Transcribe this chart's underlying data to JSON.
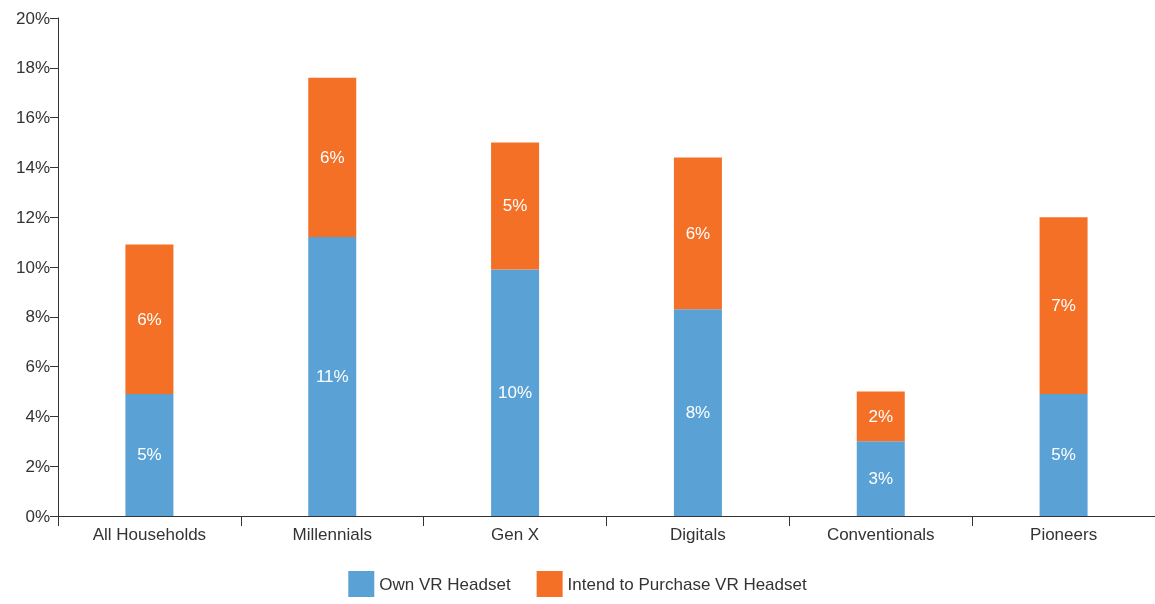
{
  "chart_data": {
    "type": "bar",
    "stacked": true,
    "categories": [
      "All Households",
      "Millennials",
      "Gen X",
      "Digitals",
      "Conventionals",
      "Pioneers"
    ],
    "series": [
      {
        "name": "Own VR Headset",
        "color": "#5aa2d5",
        "values": [
          4.9,
          11.2,
          9.9,
          8.3,
          3.0,
          4.9
        ],
        "value_labels": [
          "5%",
          "11%",
          "10%",
          "8%",
          "3%",
          "5%"
        ]
      },
      {
        "name": "Intend to Purchase VR Headset",
        "color": "#f47026",
        "values": [
          6.0,
          6.4,
          5.1,
          6.1,
          2.0,
          7.1
        ],
        "value_labels": [
          "6%",
          "6%",
          "5%",
          "6%",
          "2%",
          "7%"
        ]
      }
    ],
    "ylim": [
      0,
      20
    ],
    "yticks": [
      {
        "value": 0,
        "label": "0%"
      },
      {
        "value": 2,
        "label": "2%"
      },
      {
        "value": 4,
        "label": "4%"
      },
      {
        "value": 6,
        "label": "6%"
      },
      {
        "value": 8,
        "label": "8%"
      },
      {
        "value": 10,
        "label": "10%"
      },
      {
        "value": 12,
        "label": "12%"
      },
      {
        "value": 14,
        "label": "14%"
      },
      {
        "value": 16,
        "label": "16%"
      },
      {
        "value": 18,
        "label": "18%"
      },
      {
        "value": 20,
        "label": "20%"
      }
    ],
    "grid": false,
    "legend": "bottom"
  }
}
